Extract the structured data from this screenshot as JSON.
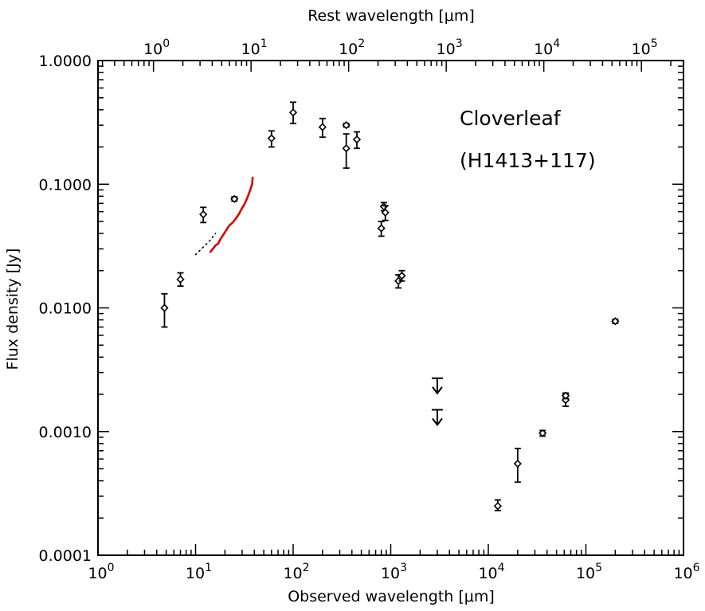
{
  "chart_data": {
    "type": "scatter",
    "title": "",
    "xlabel": "Observed wavelength [μm]",
    "ylabel": "Flux density [Jy]",
    "x2label": "Rest wavelength [μm]",
    "xscale": "log",
    "yscale": "log",
    "xlim": [
      1,
      1000000
    ],
    "ylim": [
      0.0001,
      1.0
    ],
    "x2lim": [
      0.27,
      270000
    ],
    "grid": false,
    "legend": "none",
    "annotations": [
      "Cloverleaf",
      "(H1413+117)"
    ],
    "x_ticks": [
      {
        "value": 1,
        "base": "10",
        "exp": "0"
      },
      {
        "value": 10,
        "base": "10",
        "exp": "1"
      },
      {
        "value": 100,
        "base": "10",
        "exp": "2"
      },
      {
        "value": 1000,
        "base": "10",
        "exp": "3"
      },
      {
        "value": 10000,
        "base": "10",
        "exp": "4"
      },
      {
        "value": 100000,
        "base": "10",
        "exp": "5"
      },
      {
        "value": 1000000,
        "base": "10",
        "exp": "6"
      }
    ],
    "x2_ticks": [
      {
        "value": 1,
        "base": "10",
        "exp": "0"
      },
      {
        "value": 10,
        "base": "10",
        "exp": "1"
      },
      {
        "value": 100,
        "base": "10",
        "exp": "2"
      },
      {
        "value": 1000,
        "base": "10",
        "exp": "3"
      },
      {
        "value": 10000,
        "base": "10",
        "exp": "4"
      },
      {
        "value": 100000,
        "base": "10",
        "exp": "5"
      }
    ],
    "y_ticks": [
      {
        "value": 1.0,
        "label": "1.0000"
      },
      {
        "value": 0.1,
        "label": "0.1000"
      },
      {
        "value": 0.01,
        "label": "0.0100"
      },
      {
        "value": 0.001,
        "label": "0.0010"
      },
      {
        "value": 0.0001,
        "label": "0.0001"
      }
    ],
    "colors": {
      "points": "#000000",
      "spectrum": "#dd0000",
      "axes": "#000000"
    },
    "points": [
      {
        "x": 4.8,
        "y": 0.01,
        "lo": 0.007,
        "hi": 0.013
      },
      {
        "x": 7.0,
        "y": 0.017,
        "lo": 0.015,
        "hi": 0.0192
      },
      {
        "x": 12.0,
        "y": 0.057,
        "lo": 0.049,
        "hi": 0.065
      },
      {
        "x": 25.0,
        "y": 0.076,
        "lo": 0.073,
        "hi": 0.079
      },
      {
        "x": 60.0,
        "y": 0.235,
        "lo": 0.2,
        "hi": 0.27
      },
      {
        "x": 100.0,
        "y": 0.38,
        "lo": 0.31,
        "hi": 0.46
      },
      {
        "x": 200.0,
        "y": 0.29,
        "lo": 0.24,
        "hi": 0.34
      },
      {
        "x": 350.0,
        "y": 0.3,
        "lo": 0.29,
        "hi": 0.31
      },
      {
        "x": 350.0,
        "y": 0.195,
        "lo": 0.135,
        "hi": 0.255
      },
      {
        "x": 450.0,
        "y": 0.23,
        "lo": 0.195,
        "hi": 0.265
      },
      {
        "x": 800.0,
        "y": 0.044,
        "lo": 0.038,
        "hi": 0.05
      },
      {
        "x": 850.0,
        "y": 0.066,
        "lo": 0.061,
        "hi": 0.071
      },
      {
        "x": 880.0,
        "y": 0.059,
        "lo": 0.051,
        "hi": 0.067
      },
      {
        "x": 1200.0,
        "y": 0.0165,
        "lo": 0.0145,
        "hi": 0.0185
      },
      {
        "x": 1300.0,
        "y": 0.0182,
        "lo": 0.0165,
        "hi": 0.02
      },
      {
        "x": 12500.0,
        "y": 0.00025,
        "lo": 0.00023,
        "hi": 0.00028
      },
      {
        "x": 20000.0,
        "y": 0.00055,
        "lo": 0.00039,
        "hi": 0.00073
      },
      {
        "x": 36000.0,
        "y": 0.00097,
        "lo": 0.00092,
        "hi": 0.00102
      },
      {
        "x": 62000.0,
        "y": 0.0018,
        "lo": 0.0016,
        "hi": 0.002
      },
      {
        "x": 62000.0,
        "y": 0.00195,
        "lo": 0.00185,
        "hi": 0.00205
      },
      {
        "x": 200000.0,
        "y": 0.0078,
        "lo": 0.0075,
        "hi": 0.0081
      }
    ],
    "upper_limits": [
      {
        "x": 3000.0,
        "y": 0.0027
      },
      {
        "x": 3000.0,
        "y": 0.0015
      }
    ],
    "spectrum": {
      "x": [
        14.0,
        15.0,
        16.0,
        17.0,
        18.0,
        20.0,
        22.0,
        24.0,
        26.0,
        28.0,
        30.0,
        32.0,
        34.0,
        36.0,
        38.0,
        38.5
      ],
      "y": [
        0.028,
        0.03,
        0.032,
        0.033,
        0.036,
        0.041,
        0.046,
        0.049,
        0.053,
        0.058,
        0.064,
        0.07,
        0.078,
        0.088,
        0.1,
        0.115
      ]
    },
    "dotted_line": {
      "x": [
        10.0,
        11.0,
        12.0,
        13.0,
        14.0,
        15.0,
        16.0
      ],
      "y": [
        0.027,
        0.029,
        0.031,
        0.033,
        0.035,
        0.0375,
        0.04
      ]
    }
  }
}
